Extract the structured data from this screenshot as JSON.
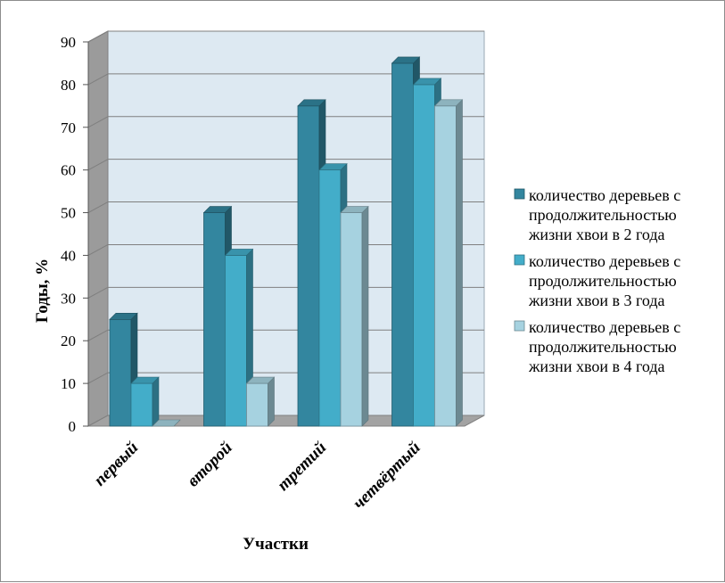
{
  "chart_data": {
    "type": "bar",
    "categories": [
      "первый",
      "второй",
      "третий",
      "четвёртый"
    ],
    "series": [
      {
        "name": "количество деревьев с продолжительностью жизни хвои в 2 года",
        "values": [
          25,
          50,
          75,
          85
        ],
        "color": "#33869f"
      },
      {
        "name": "количество деревьев с продолжительностью жизни хвои в 3 года",
        "values": [
          10,
          40,
          60,
          80
        ],
        "color": "#43adc9"
      },
      {
        "name": "количество деревьев с продолжительностью жизни хвои в 4 года",
        "values": [
          0,
          10,
          50,
          75
        ],
        "color": "#a6d2e0"
      }
    ],
    "legend_lines": [
      [
        "количество деревьев с",
        "продолжительностью",
        "жизни хвои в 2 года"
      ],
      [
        "количество деревьев с",
        "продолжительностью",
        "жизни хвои в 3 года"
      ],
      [
        "количество деревьев с",
        "продолжительностью",
        "жизни хвои в 4 года"
      ]
    ],
    "xlabel": "Участки",
    "ylabel": "Годы, %",
    "ylim": [
      0,
      90
    ],
    "yticks": [
      0,
      10,
      20,
      30,
      40,
      50,
      60,
      70,
      80,
      90
    ],
    "grid": true,
    "legend_position": "right",
    "style": "3d-column"
  }
}
